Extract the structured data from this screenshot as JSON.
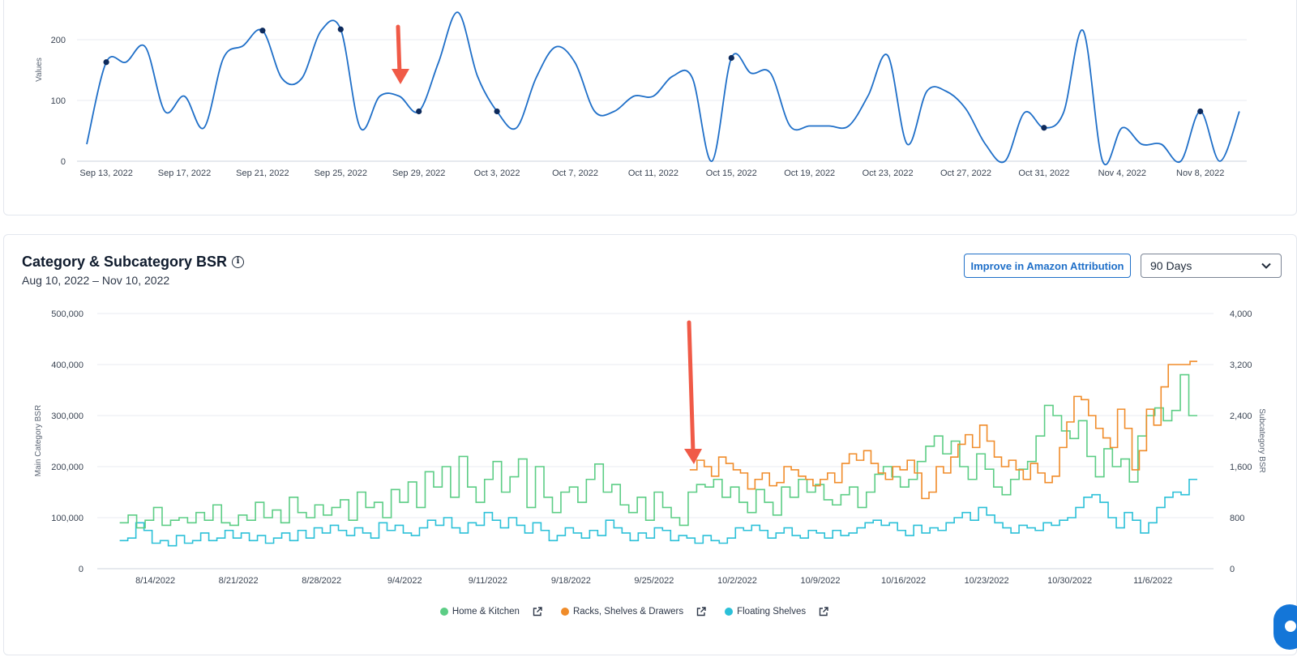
{
  "top_chart": {
    "ylabel": "Values",
    "yticks": [
      "0",
      "100",
      "200"
    ],
    "xticks": [
      "Sep 13, 2022",
      "Sep 17, 2022",
      "Sep 21, 2022",
      "Sep 25, 2022",
      "Sep 29, 2022",
      "Oct 3, 2022",
      "Oct 7, 2022",
      "Oct 11, 2022",
      "Oct 15, 2022",
      "Oct 19, 2022",
      "Oct 23, 2022",
      "Oct 27, 2022",
      "Oct 31, 2022",
      "Nov 4, 2022",
      "Nov 8, 2022"
    ],
    "line_color": "#1f6fc8",
    "marker_color": "#0d2a5c"
  },
  "bsr": {
    "title": "Category & Subcategory BSR",
    "date_range": "Aug 10, 2022 – Nov 10, 2022",
    "attribution_button": "Improve in Amazon Attribution",
    "period_select": "90 Days",
    "left_axis_label": "Main Category BSR",
    "right_axis_label": "Subcategory BSR",
    "left_ticks": [
      "0",
      "100,000",
      "200,000",
      "300,000",
      "400,000",
      "500,000"
    ],
    "right_ticks": [
      "0",
      "800",
      "1,600",
      "2,400",
      "3,200",
      "4,000"
    ],
    "xticks": [
      "8/14/2022",
      "8/21/2022",
      "8/28/2022",
      "9/4/2022",
      "9/11/2022",
      "9/18/2022",
      "9/25/2022",
      "10/2/2022",
      "10/9/2022",
      "10/16/2022",
      "10/23/2022",
      "10/30/2022",
      "11/6/2022"
    ],
    "legend": [
      {
        "label": "Home & Kitchen",
        "color": "#5ccd85"
      },
      {
        "label": "Racks, Shelves & Drawers",
        "color": "#f08c2a"
      },
      {
        "label": "Floating Shelves",
        "color": "#2bc0d8"
      }
    ]
  },
  "chart_data": [
    {
      "type": "line",
      "title": "",
      "xlabel": "",
      "ylabel": "Values",
      "ylim": [
        0,
        200
      ],
      "x": [
        "Sep 12, 2022",
        "Sep 13, 2022",
        "Sep 14, 2022",
        "Sep 15, 2022",
        "Sep 16, 2022",
        "Sep 17, 2022",
        "Sep 18, 2022",
        "Sep 19, 2022",
        "Sep 20, 2022",
        "Sep 21, 2022",
        "Sep 22, 2022",
        "Sep 23, 2022",
        "Sep 24, 2022",
        "Sep 25, 2022",
        "Sep 26, 2022",
        "Sep 27, 2022",
        "Sep 28, 2022",
        "Sep 29, 2022",
        "Sep 30, 2022",
        "Oct 1, 2022",
        "Oct 2, 2022",
        "Oct 3, 2022",
        "Oct 4, 2022",
        "Oct 5, 2022",
        "Oct 6, 2022",
        "Oct 7, 2022",
        "Oct 8, 2022",
        "Oct 9, 2022",
        "Oct 10, 2022",
        "Oct 11, 2022",
        "Oct 12, 2022",
        "Oct 13, 2022",
        "Oct 14, 2022",
        "Oct 15, 2022",
        "Oct 16, 2022",
        "Oct 17, 2022",
        "Oct 18, 2022",
        "Oct 19, 2022",
        "Oct 20, 2022",
        "Oct 21, 2022",
        "Oct 22, 2022",
        "Oct 23, 2022",
        "Oct 24, 2022",
        "Oct 25, 2022",
        "Oct 26, 2022",
        "Oct 27, 2022",
        "Oct 28, 2022",
        "Oct 29, 2022",
        "Oct 30, 2022",
        "Oct 31, 2022",
        "Nov 1, 2022",
        "Nov 2, 2022",
        "Nov 3, 2022",
        "Nov 4, 2022",
        "Nov 5, 2022",
        "Nov 6, 2022",
        "Nov 7, 2022",
        "Nov 8, 2022",
        "Nov 9, 2022",
        "Nov 10, 2022"
      ],
      "values": [
        28,
        163,
        163,
        188,
        82,
        107,
        55,
        170,
        190,
        215,
        136,
        136,
        215,
        217,
        55,
        107,
        107,
        82,
        162,
        245,
        140,
        82,
        55,
        137,
        188,
        162,
        82,
        82,
        107,
        107,
        140,
        137,
        0,
        170,
        145,
        145,
        58,
        58,
        58,
        58,
        108,
        174,
        28,
        115,
        115,
        86,
        28,
        0,
        80,
        55,
        80,
        215,
        0,
        55,
        28,
        28,
        0,
        82,
        0,
        82
      ],
      "markers_at": [
        "Sep 13, 2022",
        "Sep 21, 2022",
        "Sep 25, 2022",
        "Sep 29, 2022",
        "Oct 3, 2022",
        "Oct 15, 2022",
        "Oct 31, 2022",
        "Nov 8, 2022"
      ]
    },
    {
      "type": "line",
      "title": "Category & Subcategory BSR",
      "xlabel": "",
      "ylabel": "Main Category BSR",
      "y2label": "Subcategory BSR",
      "ylim": [
        0,
        500000
      ],
      "y2lim": [
        0,
        4000
      ],
      "x_range": [
        "8/10/2022",
        "11/10/2022"
      ],
      "series": [
        {
          "name": "Home & Kitchen",
          "axis": "left",
          "start": "8/11/2022",
          "values": [
            90000,
            105000,
            80000,
            95000,
            120000,
            85000,
            95000,
            100000,
            90000,
            110000,
            95000,
            125000,
            90000,
            85000,
            105000,
            95000,
            130000,
            100000,
            115000,
            90000,
            140000,
            110000,
            100000,
            125000,
            105000,
            120000,
            135000,
            95000,
            150000,
            120000,
            130000,
            100000,
            155000,
            130000,
            170000,
            120000,
            190000,
            160000,
            200000,
            140000,
            220000,
            160000,
            130000,
            175000,
            210000,
            150000,
            180000,
            215000,
            120000,
            200000,
            140000,
            110000,
            150000,
            160000,
            130000,
            175000,
            205000,
            150000,
            165000,
            125000,
            110000,
            140000,
            95000,
            150000,
            120000,
            100000,
            85000,
            150000,
            165000,
            160000,
            175000,
            140000,
            160000,
            130000,
            110000,
            155000,
            130000,
            105000,
            160000,
            140000,
            175000,
            150000,
            165000,
            135000,
            125000,
            145000,
            160000,
            120000,
            150000,
            185000,
            200000,
            180000,
            160000,
            175000,
            210000,
            240000,
            260000,
            225000,
            250000,
            200000,
            175000,
            225000,
            195000,
            160000,
            145000,
            175000,
            195000,
            210000,
            260000,
            320000,
            300000,
            270000,
            255000,
            290000,
            220000,
            180000,
            235000,
            200000,
            215000,
            170000,
            260000,
            300000,
            315000,
            290000,
            310000,
            380000,
            300000
          ]
        },
        {
          "name": "Racks, Shelves & Drawers",
          "axis": "right",
          "start": "9/28/2022",
          "values": [
            1550,
            1700,
            1600,
            1450,
            1750,
            1650,
            1550,
            1500,
            1250,
            1400,
            1500,
            1300,
            1350,
            1600,
            1550,
            1450,
            1400,
            1300,
            1400,
            1500,
            1350,
            1650,
            1800,
            1700,
            1850,
            1650,
            1500,
            1400,
            1600,
            1550,
            1700,
            1500,
            1100,
            1200,
            1600,
            1500,
            1750,
            1950,
            2100,
            1900,
            2250,
            2000,
            1750,
            1600,
            1700,
            1550,
            1400,
            1650,
            1500,
            1350,
            1450,
            1900,
            2300,
            2700,
            2650,
            2400,
            2200,
            2050,
            1900,
            2500,
            2200,
            1550,
            1850,
            2500,
            2250,
            2850,
            3200,
            3200,
            3200,
            3250
          ]
        },
        {
          "name": "Floating Shelves",
          "axis": "left",
          "start": "8/11/2022",
          "values": [
            55000,
            60000,
            90000,
            75000,
            50000,
            55000,
            45000,
            65000,
            50000,
            55000,
            70000,
            55000,
            60000,
            75000,
            60000,
            70000,
            55000,
            65000,
            50000,
            60000,
            70000,
            55000,
            75000,
            60000,
            80000,
            70000,
            85000,
            75000,
            65000,
            80000,
            70000,
            60000,
            90000,
            75000,
            85000,
            70000,
            65000,
            80000,
            95000,
            85000,
            100000,
            80000,
            70000,
            90000,
            85000,
            110000,
            95000,
            80000,
            100000,
            85000,
            70000,
            90000,
            75000,
            55000,
            65000,
            80000,
            70000,
            60000,
            75000,
            65000,
            95000,
            80000,
            70000,
            55000,
            70000,
            60000,
            80000,
            75000,
            55000,
            65000,
            60000,
            50000,
            65000,
            55000,
            50000,
            60000,
            80000,
            75000,
            85000,
            75000,
            60000,
            70000,
            80000,
            65000,
            60000,
            75000,
            70000,
            60000,
            75000,
            65000,
            70000,
            80000,
            90000,
            95000,
            85000,
            90000,
            75000,
            65000,
            85000,
            70000,
            80000,
            75000,
            90000,
            100000,
            110000,
            95000,
            120000,
            105000,
            90000,
            80000,
            70000,
            85000,
            80000,
            75000,
            90000,
            85000,
            95000,
            100000,
            120000,
            140000,
            145000,
            130000,
            100000,
            80000,
            110000,
            95000,
            70000,
            90000,
            120000,
            140000,
            150000,
            145000,
            175000
          ]
        }
      ]
    }
  ]
}
